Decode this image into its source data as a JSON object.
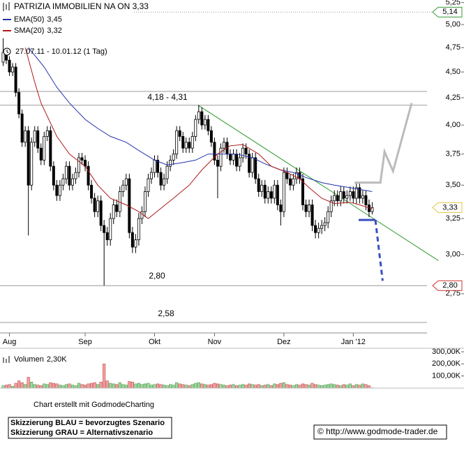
{
  "chart_data": {
    "type": "candlestick",
    "title": "PATRIZIA IMMOBILIEN NA ON 3,33",
    "subtitle": "27.07.11 - 10.01.12 (1 Tag)",
    "log_scale": true,
    "xlim": [
      -1,
      146.1
    ],
    "ylim": [
      2.58,
      5.28
    ],
    "yticks": [
      {
        "value": 5.25,
        "label": "5,25"
      },
      {
        "value": 5.0,
        "label": "5,00"
      },
      {
        "value": 4.75,
        "label": "4,75"
      },
      {
        "value": 4.5,
        "label": "4,50"
      },
      {
        "value": 4.25,
        "label": "4,25"
      },
      {
        "value": 4.0,
        "label": "4,00"
      },
      {
        "value": 3.75,
        "label": "3,75"
      },
      {
        "value": 3.5,
        "label": "3,50"
      },
      {
        "value": 3.25,
        "label": "3,25"
      },
      {
        "value": 3.0,
        "label": "3,00"
      },
      {
        "value": 2.75,
        "label": "2,75"
      }
    ],
    "xticks": [
      {
        "value": 2,
        "label": "Aug"
      },
      {
        "value": 26,
        "label": "Sep"
      },
      {
        "value": 48,
        "label": "Okt"
      },
      {
        "value": 67,
        "label": "Nov"
      },
      {
        "value": 89,
        "label": "Dez"
      },
      {
        "value": 111,
        "label": "Jan '12"
      }
    ],
    "up_color": "#ffffff",
    "down_color": "#000000",
    "open": [
      4.6,
      4.7,
      4.62,
      4.5,
      4.55,
      4.3,
      4.1,
      3.85,
      3.95,
      3.5,
      3.85,
      3.95,
      3.8,
      3.7,
      3.9,
      3.95,
      3.65,
      3.5,
      3.42,
      3.5,
      3.55,
      3.65,
      3.5,
      3.55,
      3.6,
      3.72,
      3.7,
      3.65,
      3.5,
      3.4,
      3.3,
      3.38,
      3.2,
      3.15,
      3.1,
      3.25,
      3.35,
      3.3,
      3.45,
      3.5,
      3.55,
      3.15,
      3.05,
      3.1,
      3.25,
      3.3,
      3.45,
      3.55,
      3.6,
      3.7,
      3.6,
      3.5,
      3.55,
      3.65,
      3.7,
      3.75,
      3.95,
      3.9,
      3.8,
      3.85,
      3.8,
      3.9,
      4.05,
      4.12,
      4.0,
      4.05,
      3.95,
      3.85,
      3.7,
      3.65,
      3.8,
      3.85,
      3.75,
      3.7,
      3.75,
      3.65,
      3.72,
      3.8,
      3.75,
      3.6,
      3.72,
      3.55,
      3.45,
      3.5,
      3.4,
      3.45,
      3.4,
      3.5,
      3.35,
      3.3,
      3.6,
      3.55,
      3.5,
      3.55,
      3.6,
      3.55,
      3.35,
      3.3,
      3.35,
      3.2,
      3.15,
      3.18,
      3.2,
      3.22,
      3.3,
      3.38,
      3.42,
      3.38,
      3.45,
      3.4,
      3.42,
      3.45,
      3.4,
      3.48,
      3.4,
      3.42,
      3.35,
      3.3
    ],
    "high": [
      4.85,
      4.74,
      4.66,
      4.59,
      4.59,
      4.34,
      4.14,
      3.99,
      3.99,
      3.89,
      3.99,
      3.99,
      3.84,
      3.94,
      3.99,
      3.99,
      3.69,
      3.54,
      3.54,
      3.59,
      3.69,
      3.69,
      3.59,
      3.64,
      3.76,
      3.76,
      3.74,
      3.69,
      3.54,
      3.44,
      3.42,
      3.42,
      3.24,
      3.19,
      3.29,
      3.39,
      3.39,
      3.49,
      3.54,
      3.59,
      3.59,
      3.19,
      3.14,
      3.29,
      3.34,
      3.49,
      3.59,
      3.64,
      3.74,
      3.74,
      3.64,
      3.59,
      3.69,
      3.74,
      3.79,
      3.99,
      3.99,
      3.94,
      3.89,
      3.89,
      3.94,
      4.09,
      4.18,
      4.16,
      4.09,
      4.09,
      3.99,
      3.89,
      3.74,
      3.84,
      3.89,
      3.89,
      3.79,
      3.79,
      3.79,
      3.76,
      3.84,
      3.84,
      3.79,
      3.76,
      3.76,
      3.59,
      3.54,
      3.54,
      3.49,
      3.49,
      3.54,
      3.54,
      3.39,
      3.64,
      3.64,
      3.59,
      3.59,
      3.64,
      3.64,
      3.59,
      3.39,
      3.39,
      3.39,
      3.24,
      3.22,
      3.24,
      3.26,
      3.34,
      3.42,
      3.46,
      3.46,
      3.49,
      3.49,
      3.46,
      3.49,
      3.49,
      3.52,
      3.52,
      3.46,
      3.46,
      3.39,
      3.37
    ],
    "low": [
      4.56,
      4.58,
      4.46,
      4.46,
      4.26,
      4.06,
      3.81,
      3.81,
      3.13,
      3.46,
      3.81,
      3.76,
      3.66,
      3.66,
      3.86,
      3.61,
      3.46,
      3.38,
      3.38,
      3.46,
      3.51,
      3.46,
      3.46,
      3.51,
      3.56,
      3.66,
      3.61,
      3.46,
      3.36,
      3.26,
      3.26,
      3.16,
      2.8,
      3.06,
      3.06,
      3.21,
      3.26,
      3.26,
      3.41,
      3.46,
      3.11,
      3.01,
      3.01,
      3.06,
      3.21,
      3.26,
      3.41,
      3.51,
      3.56,
      3.56,
      3.46,
      3.46,
      3.51,
      3.61,
      3.66,
      3.71,
      3.86,
      3.76,
      3.76,
      3.76,
      3.76,
      3.86,
      4.01,
      3.96,
      3.96,
      3.91,
      3.81,
      3.66,
      3.4,
      3.61,
      3.76,
      3.71,
      3.66,
      3.66,
      3.61,
      3.61,
      3.68,
      3.71,
      3.56,
      3.56,
      3.51,
      3.41,
      3.41,
      3.36,
      3.36,
      3.36,
      3.36,
      3.31,
      3.2,
      3.26,
      3.51,
      3.46,
      3.46,
      3.51,
      3.51,
      3.31,
      3.26,
      3.26,
      3.16,
      3.11,
      3.11,
      3.14,
      3.16,
      3.18,
      3.26,
      3.34,
      3.34,
      3.34,
      3.36,
      3.36,
      3.38,
      3.36,
      3.36,
      3.36,
      3.36,
      3.31,
      3.26,
      3.28
    ],
    "close": [
      4.7,
      4.62,
      4.5,
      4.55,
      4.3,
      4.1,
      3.85,
      3.95,
      3.5,
      3.85,
      3.95,
      3.8,
      3.7,
      3.9,
      3.95,
      3.65,
      3.5,
      3.42,
      3.5,
      3.55,
      3.65,
      3.5,
      3.55,
      3.6,
      3.72,
      3.7,
      3.65,
      3.5,
      3.4,
      3.3,
      3.38,
      3.2,
      3.15,
      3.1,
      3.25,
      3.35,
      3.3,
      3.45,
      3.5,
      3.55,
      3.15,
      3.05,
      3.1,
      3.25,
      3.3,
      3.45,
      3.55,
      3.6,
      3.7,
      3.6,
      3.5,
      3.55,
      3.65,
      3.7,
      3.75,
      3.95,
      3.9,
      3.8,
      3.85,
      3.8,
      3.9,
      4.05,
      4.12,
      4.0,
      4.05,
      3.95,
      3.85,
      3.7,
      3.65,
      3.8,
      3.85,
      3.75,
      3.7,
      3.75,
      3.65,
      3.72,
      3.8,
      3.75,
      3.6,
      3.72,
      3.55,
      3.45,
      3.5,
      3.4,
      3.45,
      3.4,
      3.5,
      3.35,
      3.3,
      3.6,
      3.55,
      3.5,
      3.55,
      3.6,
      3.55,
      3.35,
      3.3,
      3.35,
      3.2,
      3.15,
      3.18,
      3.2,
      3.22,
      3.3,
      3.38,
      3.42,
      3.38,
      3.45,
      3.4,
      3.42,
      3.45,
      3.4,
      3.48,
      3.4,
      3.42,
      3.35,
      3.3,
      3.33
    ],
    "series": [
      {
        "name": "EMA(50)",
        "color": "#2233aa",
        "last": {
          "value": 3.45,
          "label": "3,45"
        },
        "x": [
          8,
          13,
          17,
          21,
          26,
          30,
          34,
          39,
          43,
          48,
          52,
          57,
          61,
          65,
          70,
          74,
          79,
          83,
          88,
          92,
          96,
          101,
          105,
          110,
          117
        ],
        "values": [
          4.75,
          4.55,
          4.35,
          4.2,
          4.05,
          3.97,
          3.9,
          3.85,
          3.78,
          3.7,
          3.66,
          3.68,
          3.7,
          3.75,
          3.75,
          3.75,
          3.72,
          3.67,
          3.62,
          3.6,
          3.56,
          3.52,
          3.5,
          3.48,
          3.45
        ]
      },
      {
        "name": "SMA(20)",
        "color": "#b01818",
        "last": {
          "value": 3.32,
          "label": "3,32"
        },
        "x": [
          7,
          10,
          12,
          17,
          21,
          26,
          30,
          34,
          39,
          43,
          46,
          54,
          59,
          63,
          68,
          72,
          76,
          81,
          85,
          90,
          94,
          97,
          101,
          105,
          110,
          113,
          117
        ],
        "values": [
          4.75,
          4.4,
          4.2,
          3.9,
          3.75,
          3.65,
          3.5,
          3.4,
          3.35,
          3.3,
          3.25,
          3.4,
          3.5,
          3.62,
          3.75,
          3.82,
          3.83,
          3.75,
          3.65,
          3.6,
          3.55,
          3.48,
          3.4,
          3.36,
          3.37,
          3.35,
          3.32
        ]
      }
    ],
    "levels": [
      4.31,
      4.18,
      2.8,
      2.58
    ],
    "level_labels": [
      "4,18 - 4,31",
      "2,80",
      "2,58"
    ],
    "price_labels": [
      {
        "value": 5.14,
        "label": "5,14",
        "color": "#3a9a3a",
        "line": "dotted"
      },
      {
        "value": 3.33,
        "label": "3,33",
        "color": "#e0c840"
      },
      {
        "value": 2.8,
        "label": "2,80",
        "color": "#d03030"
      }
    ],
    "trendline": {
      "color": "#2a9a2a",
      "x": [
        61.8,
        138
      ],
      "values": [
        4.18,
        2.96
      ]
    },
    "scenarios": [
      {
        "color": "#3a4fc0",
        "style": "solid",
        "x": [
          112.7,
          118
        ],
        "values": [
          3.24,
          3.24
        ]
      },
      {
        "color": "#3a4fc0",
        "style": "dashed",
        "x": [
          118,
          120.3
        ],
        "values": [
          3.24,
          2.83
        ]
      },
      {
        "color": "#bbbbbb",
        "style": "solid",
        "x": [
          111.4,
          119.6,
          120.9,
          123.6,
          129.5
        ],
        "values": [
          3.52,
          3.52,
          3.77,
          3.61,
          4.2
        ]
      }
    ],
    "volume": {
      "label": "Volumen",
      "last": {
        "value": 2.3,
        "label": "2,30K"
      },
      "ylim": [
        0,
        323
      ],
      "yticks": [
        {
          "value": 300,
          "label": "300,00K"
        },
        {
          "value": 200,
          "label": "200,00K"
        },
        {
          "value": 100,
          "label": "100,00K"
        }
      ],
      "up_color": "#9fd89f",
      "down_color": "#f2a0a0",
      "values": [
        20,
        25,
        30,
        15,
        40,
        60,
        45,
        30,
        90,
        50,
        30,
        25,
        20,
        35,
        30,
        45,
        40,
        35,
        25,
        20,
        30,
        35,
        25,
        20,
        40,
        30,
        25,
        35,
        40,
        45,
        30,
        50,
        200,
        60,
        40,
        35,
        30,
        45,
        30,
        25,
        55,
        50,
        35,
        40,
        30,
        35,
        40,
        25,
        30,
        35,
        30,
        25,
        20,
        30,
        25,
        45,
        35,
        30,
        25,
        20,
        30,
        40,
        45,
        35,
        30,
        25,
        30,
        40,
        35,
        30,
        25,
        20,
        25,
        30,
        20,
        25,
        30,
        25,
        35,
        30,
        25,
        30,
        20,
        25,
        30,
        20,
        35,
        30,
        40,
        45,
        30,
        25,
        20,
        30,
        25,
        35,
        30,
        25,
        40,
        30,
        25,
        20,
        25,
        30,
        35,
        30,
        25,
        20,
        30,
        25,
        35,
        20,
        30,
        25,
        35,
        30,
        20,
        2.3
      ]
    },
    "credit": "Chart erstellt mit GodmodeCharting",
    "notes": [
      "Skizzierung BLAU = bevorzugtes Szenario",
      "Skizzierung GRAU = Alternativszenario"
    ],
    "source": "© http://www.godmode-trader.de"
  }
}
